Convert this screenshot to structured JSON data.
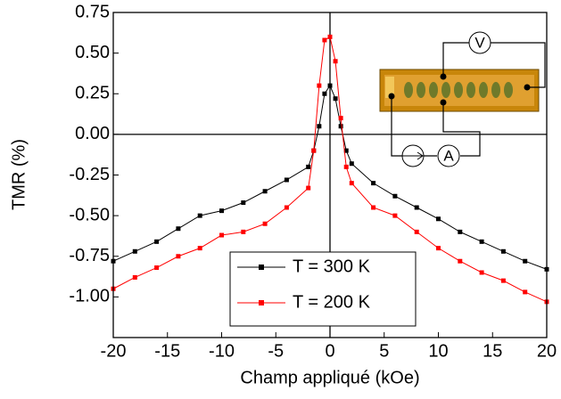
{
  "chart_data": {
    "type": "line",
    "x_label": "Champ appliqué (kOe)",
    "y_label": "TMR (%)",
    "x": [
      -20,
      -18,
      -16,
      -14,
      -12,
      -10,
      -8,
      -6,
      -4,
      -2,
      -1.5,
      -1,
      -0.5,
      0,
      0.5,
      1,
      1.5,
      2,
      4,
      6,
      8,
      10,
      12,
      14,
      16,
      18,
      20
    ],
    "series": [
      {
        "name": "T = 300 K",
        "color": "#000000",
        "values": [
          -0.78,
          -0.72,
          -0.66,
          -0.58,
          -0.5,
          -0.47,
          -0.42,
          -0.35,
          -0.28,
          -0.2,
          -0.1,
          0.05,
          0.25,
          0.3,
          0.22,
          0.05,
          -0.1,
          -0.18,
          -0.3,
          -0.38,
          -0.45,
          -0.52,
          -0.6,
          -0.66,
          -0.72,
          -0.78,
          -0.83
        ]
      },
      {
        "name": "T = 200 K",
        "color": "#ff0000",
        "values": [
          -0.95,
          -0.88,
          -0.82,
          -0.75,
          -0.7,
          -0.62,
          -0.6,
          -0.55,
          -0.45,
          -0.33,
          -0.1,
          0.3,
          0.58,
          0.6,
          0.45,
          0.1,
          -0.2,
          -0.3,
          -0.45,
          -0.5,
          -0.6,
          -0.7,
          -0.78,
          -0.85,
          -0.9,
          -0.97,
          -1.03
        ]
      }
    ],
    "xlim": [
      -20,
      20
    ],
    "ylim": [
      -1.25,
      0.75
    ],
    "xticks": [
      -20,
      -15,
      -10,
      -5,
      0,
      5,
      10,
      15,
      20
    ],
    "yticks": [
      0.75,
      {
        "value": 0.5,
        "label": "0.50"
      },
      0.25,
      {
        "value": 0,
        "label": "0.00"
      },
      -0.25,
      {
        "value": -0.5,
        "label": "-0.50"
      },
      -0.75,
      {
        "value": -1,
        "label": "-1.00"
      }
    ],
    "inset_labels": [
      "V",
      "A"
    ]
  }
}
